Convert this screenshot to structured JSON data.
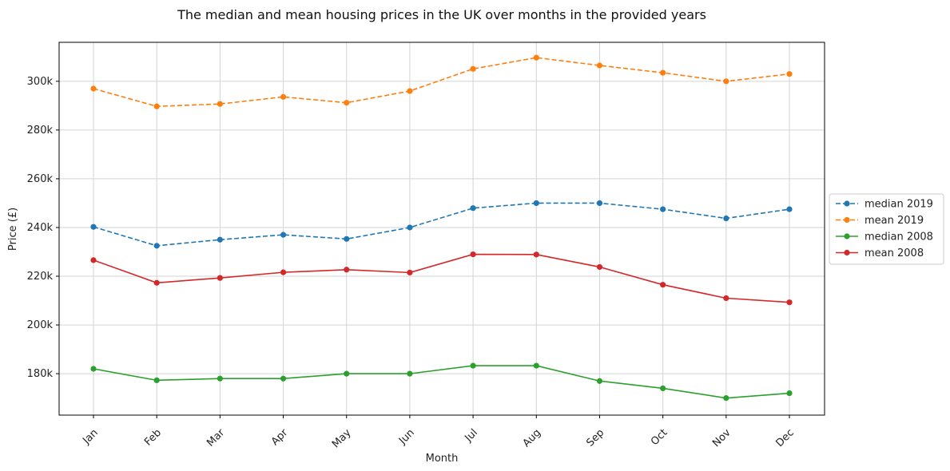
{
  "chart_data": {
    "type": "line",
    "title": "The median and mean housing prices in the UK over months in the provided years",
    "xlabel": "Month",
    "ylabel": "Price (£)",
    "categories": [
      "Jan",
      "Feb",
      "Mar",
      "Apr",
      "May",
      "Jun",
      "Jul",
      "Aug",
      "Sep",
      "Oct",
      "Nov",
      "Dec"
    ],
    "ylim": [
      163000,
      316000
    ],
    "yticks": [
      180000,
      200000,
      220000,
      240000,
      260000,
      280000,
      300000
    ],
    "ytick_labels": [
      "180k",
      "200k",
      "220k",
      "240k",
      "260k",
      "280k",
      "300k"
    ],
    "grid": true,
    "legend_position": "right",
    "series": [
      {
        "name": "median 2019",
        "color": "#1f77b4",
        "dashed": true,
        "values": [
          240250,
          232500,
          235000,
          237000,
          235300,
          240000,
          247950,
          250000,
          250000,
          247500,
          243750,
          247500
        ]
      },
      {
        "name": "mean 2019",
        "color": "#ff7f0e",
        "dashed": true,
        "values": [
          297000,
          289700,
          290700,
          293600,
          291200,
          296000,
          305100,
          309700,
          306500,
          303500,
          300000,
          303000
        ]
      },
      {
        "name": "median 2008",
        "color": "#2ca02c",
        "dashed": false,
        "values": [
          182000,
          177300,
          178000,
          178000,
          180000,
          180000,
          183300,
          183300,
          177000,
          174000,
          170000,
          172000
        ]
      },
      {
        "name": "mean 2008",
        "color": "#d62728",
        "dashed": false,
        "values": [
          226600,
          217300,
          219300,
          221600,
          222700,
          221500,
          229000,
          228900,
          223800,
          216500,
          211000,
          209300
        ]
      }
    ]
  }
}
